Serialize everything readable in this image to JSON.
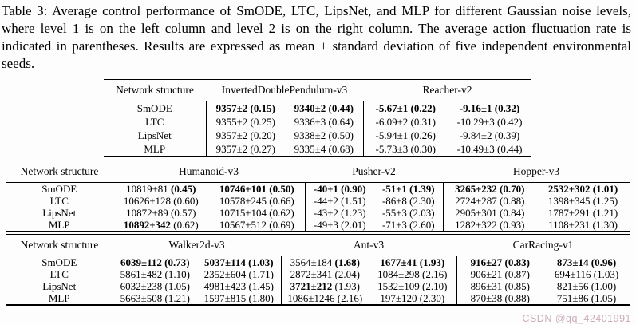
{
  "caption": "Table 3: Average control performance of SmODE, LTC, LipsNet, and MLP for different Gaussian noise levels, where level 1 is on the left column and level 2 is on the right column. The average action fluctuation rate is indicated in parentheses. Results are expressed as mean ± standard deviation of five independent environmental seeds.",
  "watermark": "CSDN @qq_42401991",
  "colors": {
    "text": "#000000",
    "rule": "#000000",
    "watermark": "#cbaebc",
    "background": "#fdfdfd"
  },
  "tables": [
    {
      "header_label": "Network structure",
      "col_groups": [
        "InvertedDoublePendulum-v3",
        "Reacher-v2"
      ],
      "rows": [
        {
          "label": "SmODE",
          "cells": [
            {
              "m": "9357±2",
              "p": "(0.15)",
              "mb": true,
              "pb": true
            },
            {
              "m": "9340±2",
              "p": "(0.44)",
              "mb": true,
              "pb": true
            },
            {
              "m": "-5.67±1",
              "p": "(0.22)",
              "mb": true,
              "pb": true
            },
            {
              "m": "-9.16±1",
              "p": "(0.32)",
              "mb": true,
              "pb": true
            }
          ]
        },
        {
          "label": "LTC",
          "cells": [
            {
              "m": "9355±2",
              "p": "(0.25)",
              "mb": false,
              "pb": false
            },
            {
              "m": "9336±3",
              "p": "(0.64)",
              "mb": false,
              "pb": false
            },
            {
              "m": "-6.09±2",
              "p": "(0.31)",
              "mb": false,
              "pb": false
            },
            {
              "m": "-10.29±3",
              "p": "(0.42)",
              "mb": false,
              "pb": false
            }
          ]
        },
        {
          "label": "LipsNet",
          "cells": [
            {
              "m": "9357±2",
              "p": "(0.20)",
              "mb": false,
              "pb": false
            },
            {
              "m": "9338±2",
              "p": "(0.50)",
              "mb": false,
              "pb": false
            },
            {
              "m": "-5.94±1",
              "p": "(0.26)",
              "mb": false,
              "pb": false
            },
            {
              "m": "-9.84±2",
              "p": "(0.39)",
              "mb": false,
              "pb": false
            }
          ]
        },
        {
          "label": "MLP",
          "cells": [
            {
              "m": "9357±2",
              "p": "(0.27)",
              "mb": false,
              "pb": false
            },
            {
              "m": "9335±4",
              "p": "(0.68)",
              "mb": false,
              "pb": false
            },
            {
              "m": "-5.73±3",
              "p": "(0.30)",
              "mb": false,
              "pb": false
            },
            {
              "m": "-10.49±3",
              "p": "(0.44)",
              "mb": false,
              "pb": false
            }
          ]
        }
      ]
    },
    {
      "header_label": "Network structure",
      "col_groups": [
        "Humanoid-v3",
        "Pusher-v2",
        "Hopper-v3"
      ],
      "rows": [
        {
          "label": "SmODE",
          "cells": [
            {
              "m": "10819±81",
              "p": "(0.45)",
              "mb": false,
              "pb": true
            },
            {
              "m": "10746±101",
              "p": "(0.50)",
              "mb": true,
              "pb": true
            },
            {
              "m": "-40±1",
              "p": "(0.90)",
              "mb": true,
              "pb": true
            },
            {
              "m": "-51±1",
              "p": "(1.39)",
              "mb": true,
              "pb": true
            },
            {
              "m": "3265±232",
              "p": "(0.70)",
              "mb": true,
              "pb": true
            },
            {
              "m": "2532±302",
              "p": "(1.01)",
              "mb": true,
              "pb": true
            }
          ]
        },
        {
          "label": "LTC",
          "cells": [
            {
              "m": "10626±128",
              "p": "(0.60)",
              "mb": false,
              "pb": false
            },
            {
              "m": "10578±245",
              "p": "(0.66)",
              "mb": false,
              "pb": false
            },
            {
              "m": "-44±2",
              "p": "(1.51)",
              "mb": false,
              "pb": false
            },
            {
              "m": "-86±8",
              "p": "(2.30)",
              "mb": false,
              "pb": false
            },
            {
              "m": "2724±287",
              "p": "(0.88)",
              "mb": false,
              "pb": false
            },
            {
              "m": "1398±345",
              "p": "(1.25)",
              "mb": false,
              "pb": false
            }
          ]
        },
        {
          "label": "LipsNet",
          "cells": [
            {
              "m": "10872±89",
              "p": "(0.57)",
              "mb": false,
              "pb": false
            },
            {
              "m": "10715±104",
              "p": "(0.62)",
              "mb": false,
              "pb": false
            },
            {
              "m": "-43±2",
              "p": "(1.23)",
              "mb": false,
              "pb": false
            },
            {
              "m": "-55±3",
              "p": "(2.03)",
              "mb": false,
              "pb": false
            },
            {
              "m": "2905±301",
              "p": "(0.84)",
              "mb": false,
              "pb": false
            },
            {
              "m": "1787±291",
              "p": "(1.21)",
              "mb": false,
              "pb": false
            }
          ]
        },
        {
          "label": "MLP",
          "cells": [
            {
              "m": "10892±342",
              "p": "(0.62)",
              "mb": true,
              "pb": false
            },
            {
              "m": "10567±512",
              "p": "(0.69)",
              "mb": false,
              "pb": false
            },
            {
              "m": "-49±3",
              "p": "(2.01)",
              "mb": false,
              "pb": false
            },
            {
              "m": "-71±3",
              "p": "(2.60)",
              "mb": false,
              "pb": false
            },
            {
              "m": "1282±322",
              "p": "(0.93)",
              "mb": false,
              "pb": false
            },
            {
              "m": "1108±231",
              "p": "(1.30)",
              "mb": false,
              "pb": false
            }
          ]
        }
      ]
    },
    {
      "header_label": "Network structure",
      "col_groups": [
        "Walker2d-v3",
        "Ant-v3",
        "CarRacing-v1"
      ],
      "rows": [
        {
          "label": "SmODE",
          "cells": [
            {
              "m": "6039±112",
              "p": "(0.73)",
              "mb": true,
              "pb": true
            },
            {
              "m": "5037±114",
              "p": "(1.03)",
              "mb": true,
              "pb": true
            },
            {
              "m": "3564±184",
              "p": "(1.68)",
              "mb": false,
              "pb": true
            },
            {
              "m": "1677±41",
              "p": "(1.93)",
              "mb": true,
              "pb": true
            },
            {
              "m": "916±27",
              "p": "(0.83)",
              "mb": true,
              "pb": true
            },
            {
              "m": "873±14",
              "p": "(0.96)",
              "mb": true,
              "pb": true
            }
          ]
        },
        {
          "label": "LTC",
          "cells": [
            {
              "m": "5861±482",
              "p": "(1.10)",
              "mb": false,
              "pb": false
            },
            {
              "m": "2352±604",
              "p": "(1.71)",
              "mb": false,
              "pb": false
            },
            {
              "m": "2872±341",
              "p": "(2.04)",
              "mb": false,
              "pb": false
            },
            {
              "m": "1084±298",
              "p": "(2.16)",
              "mb": false,
              "pb": false
            },
            {
              "m": "906±21",
              "p": "(0.87)",
              "mb": false,
              "pb": false
            },
            {
              "m": "694±116",
              "p": "(1.03)",
              "mb": false,
              "pb": false
            }
          ]
        },
        {
          "label": "LipsNet",
          "cells": [
            {
              "m": "6032±238",
              "p": "(1.05)",
              "mb": false,
              "pb": false
            },
            {
              "m": "4981±423",
              "p": "(1.45)",
              "mb": false,
              "pb": false
            },
            {
              "m": "3721±212",
              "p": "(1.93)",
              "mb": true,
              "pb": false
            },
            {
              "m": "1532±109",
              "p": "(2.10)",
              "mb": false,
              "pb": false
            },
            {
              "m": "896±31",
              "p": "(0.85)",
              "mb": false,
              "pb": false
            },
            {
              "m": "821±56",
              "p": "(1.00)",
              "mb": false,
              "pb": false
            }
          ]
        },
        {
          "label": "MLP",
          "cells": [
            {
              "m": "5663±508",
              "p": "(1.21)",
              "mb": false,
              "pb": false
            },
            {
              "m": "1597±815",
              "p": "(1.80)",
              "mb": false,
              "pb": false
            },
            {
              "m": "1086±1246",
              "p": "(2.16)",
              "mb": false,
              "pb": false
            },
            {
              "m": "197±120",
              "p": "(2.30)",
              "mb": false,
              "pb": false
            },
            {
              "m": "870±38",
              "p": "(0.88)",
              "mb": false,
              "pb": false
            },
            {
              "m": "751±86",
              "p": "(1.05)",
              "mb": false,
              "pb": false
            }
          ]
        }
      ]
    }
  ]
}
